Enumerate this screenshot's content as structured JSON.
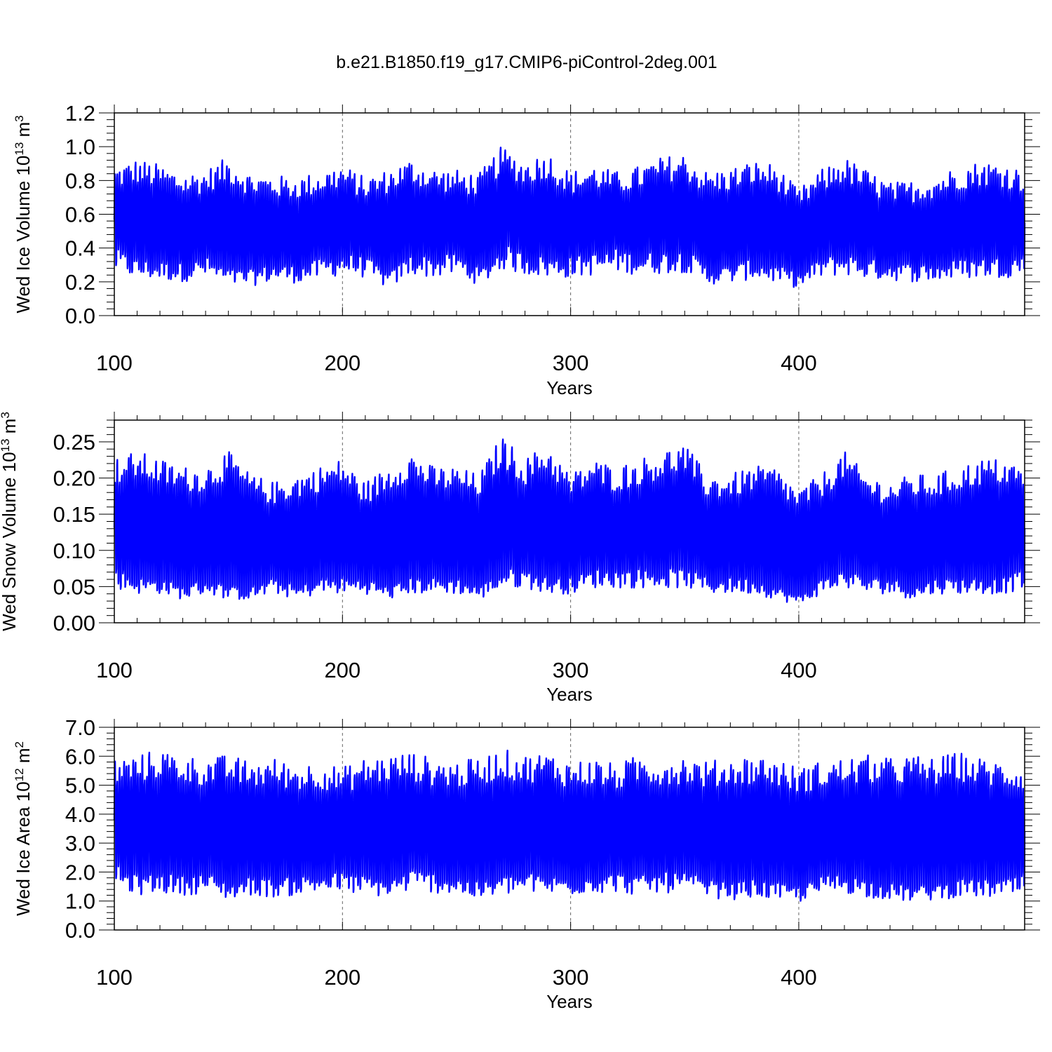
{
  "figure": {
    "title": "b.e21.B1850.f19_g17.CMIP6-piControl-2deg.001"
  },
  "chart_data": [
    {
      "type": "line",
      "title": "",
      "xlabel": "Years",
      "ylabel": {
        "text": "Wed Ice Volume 10",
        "exp": "13",
        "unit": " m",
        "unit_exp": "3"
      },
      "xlim": [
        100,
        499
      ],
      "ylim": [
        0.0,
        1.2
      ],
      "xticks": [
        100,
        200,
        300,
        400
      ],
      "xtick_labels": [
        "100",
        "200",
        "300",
        "400"
      ],
      "yticks": [
        0.0,
        0.2,
        0.4,
        0.6,
        0.8,
        1.0,
        1.2
      ],
      "ytick_labels": [
        "0.0",
        "0.2",
        "0.4",
        "0.6",
        "0.8",
        "1.0",
        "1.2"
      ],
      "grid": "dashed vertical at 100, 200, 300, 400",
      "series": [
        {
          "color": "#0000ff",
          "resolution": "monthly, annual cycle",
          "x": [
            100,
            110,
            120,
            130,
            140,
            150,
            160,
            170,
            180,
            190,
            200,
            210,
            220,
            230,
            240,
            250,
            260,
            270,
            280,
            290,
            300,
            310,
            320,
            330,
            340,
            350,
            360,
            370,
            380,
            390,
            400,
            410,
            420,
            430,
            440,
            450,
            460,
            470,
            480,
            490,
            499
          ],
          "annual_max": [
            0.82,
            0.86,
            0.83,
            0.78,
            0.8,
            0.87,
            0.78,
            0.77,
            0.76,
            0.79,
            0.83,
            0.76,
            0.8,
            0.86,
            0.81,
            0.8,
            0.78,
            0.93,
            0.85,
            0.9,
            0.79,
            0.83,
            0.79,
            0.82,
            0.87,
            0.89,
            0.79,
            0.81,
            0.85,
            0.83,
            0.69,
            0.8,
            0.87,
            0.8,
            0.73,
            0.74,
            0.77,
            0.82,
            0.85,
            0.84,
            0.8
          ],
          "annual_min": [
            0.32,
            0.27,
            0.26,
            0.25,
            0.28,
            0.22,
            0.22,
            0.25,
            0.24,
            0.27,
            0.3,
            0.28,
            0.2,
            0.3,
            0.28,
            0.3,
            0.22,
            0.34,
            0.3,
            0.28,
            0.28,
            0.3,
            0.32,
            0.3,
            0.31,
            0.32,
            0.23,
            0.24,
            0.27,
            0.24,
            0.2,
            0.28,
            0.3,
            0.27,
            0.26,
            0.25,
            0.25,
            0.27,
            0.28,
            0.28,
            0.3
          ]
        }
      ]
    },
    {
      "type": "line",
      "title": "",
      "xlabel": "Years",
      "ylabel": {
        "text": "Wed Snow Volume 10",
        "exp": "13",
        "unit": " m",
        "unit_exp": "3"
      },
      "xlim": [
        100,
        499
      ],
      "ylim": [
        0.0,
        0.28
      ],
      "xticks": [
        100,
        200,
        300,
        400
      ],
      "xtick_labels": [
        "100",
        "200",
        "300",
        "400"
      ],
      "yticks": [
        0.0,
        0.05,
        0.1,
        0.15,
        0.2,
        0.25
      ],
      "ytick_labels": [
        "0.00",
        "0.05",
        "0.10",
        "0.15",
        "0.20",
        "0.25"
      ],
      "grid": "dashed vertical at 100, 200, 300, 400",
      "series": [
        {
          "color": "#0000ff",
          "resolution": "monthly, annual cycle",
          "x": [
            100,
            110,
            120,
            130,
            140,
            150,
            160,
            170,
            180,
            190,
            200,
            210,
            220,
            230,
            240,
            250,
            260,
            270,
            280,
            290,
            300,
            310,
            320,
            330,
            340,
            350,
            360,
            370,
            380,
            390,
            400,
            410,
            420,
            430,
            440,
            450,
            460,
            470,
            480,
            490,
            499
          ],
          "annual_max": [
            0.21,
            0.22,
            0.21,
            0.2,
            0.2,
            0.22,
            0.19,
            0.18,
            0.19,
            0.2,
            0.21,
            0.18,
            0.2,
            0.22,
            0.2,
            0.2,
            0.19,
            0.24,
            0.21,
            0.23,
            0.19,
            0.21,
            0.2,
            0.21,
            0.22,
            0.23,
            0.19,
            0.19,
            0.2,
            0.2,
            0.17,
            0.19,
            0.22,
            0.19,
            0.18,
            0.19,
            0.19,
            0.2,
            0.21,
            0.21,
            0.2
          ],
          "annual_min": [
            0.06,
            0.05,
            0.05,
            0.04,
            0.05,
            0.04,
            0.04,
            0.05,
            0.04,
            0.05,
            0.05,
            0.05,
            0.04,
            0.05,
            0.05,
            0.05,
            0.04,
            0.06,
            0.06,
            0.05,
            0.05,
            0.06,
            0.06,
            0.06,
            0.06,
            0.06,
            0.05,
            0.05,
            0.05,
            0.04,
            0.03,
            0.05,
            0.06,
            0.05,
            0.05,
            0.04,
            0.05,
            0.05,
            0.05,
            0.05,
            0.06
          ]
        }
      ]
    },
    {
      "type": "line",
      "title": "",
      "xlabel": "Years",
      "ylabel": {
        "text": "Wed Ice Area 10",
        "exp": "12",
        "unit": " m",
        "unit_exp": "2"
      },
      "xlim": [
        100,
        499
      ],
      "ylim": [
        0.0,
        7.0
      ],
      "xticks": [
        100,
        200,
        300,
        400
      ],
      "xtick_labels": [
        "100",
        "200",
        "300",
        "400"
      ],
      "yticks": [
        0.0,
        1.0,
        2.0,
        3.0,
        4.0,
        5.0,
        6.0,
        7.0
      ],
      "ytick_labels": [
        "0.0",
        "1.0",
        "2.0",
        "3.0",
        "4.0",
        "5.0",
        "6.0",
        "7.0"
      ],
      "grid": "dashed vertical at 100, 200, 300, 400",
      "series": [
        {
          "color": "#0000ff",
          "resolution": "monthly, annual cycle",
          "x": [
            100,
            110,
            120,
            130,
            140,
            150,
            160,
            170,
            180,
            190,
            200,
            210,
            220,
            230,
            240,
            250,
            260,
            270,
            280,
            290,
            300,
            310,
            320,
            330,
            340,
            350,
            360,
            370,
            380,
            390,
            400,
            410,
            420,
            430,
            440,
            450,
            460,
            470,
            480,
            490,
            499
          ],
          "annual_max": [
            5.5,
            5.6,
            5.8,
            5.6,
            5.5,
            5.6,
            5.4,
            5.5,
            5.3,
            5.4,
            5.2,
            5.5,
            5.6,
            5.7,
            5.5,
            5.4,
            5.5,
            5.8,
            5.6,
            5.7,
            5.4,
            5.5,
            5.3,
            5.6,
            5.5,
            5.6,
            5.4,
            5.5,
            5.6,
            5.5,
            5.2,
            5.4,
            5.5,
            5.6,
            5.5,
            5.6,
            5.5,
            5.7,
            5.5,
            5.4,
            5.3
          ],
          "annual_min": [
            1.8,
            1.5,
            1.6,
            1.5,
            1.6,
            1.3,
            1.5,
            1.4,
            1.5,
            1.6,
            1.6,
            1.5,
            1.4,
            1.7,
            1.6,
            1.5,
            1.3,
            1.5,
            1.6,
            1.5,
            1.5,
            1.6,
            1.6,
            1.5,
            1.6,
            1.6,
            1.4,
            1.3,
            1.4,
            1.3,
            1.2,
            1.5,
            1.6,
            1.4,
            1.3,
            1.2,
            1.3,
            1.4,
            1.4,
            1.4,
            1.5
          ]
        }
      ]
    }
  ]
}
